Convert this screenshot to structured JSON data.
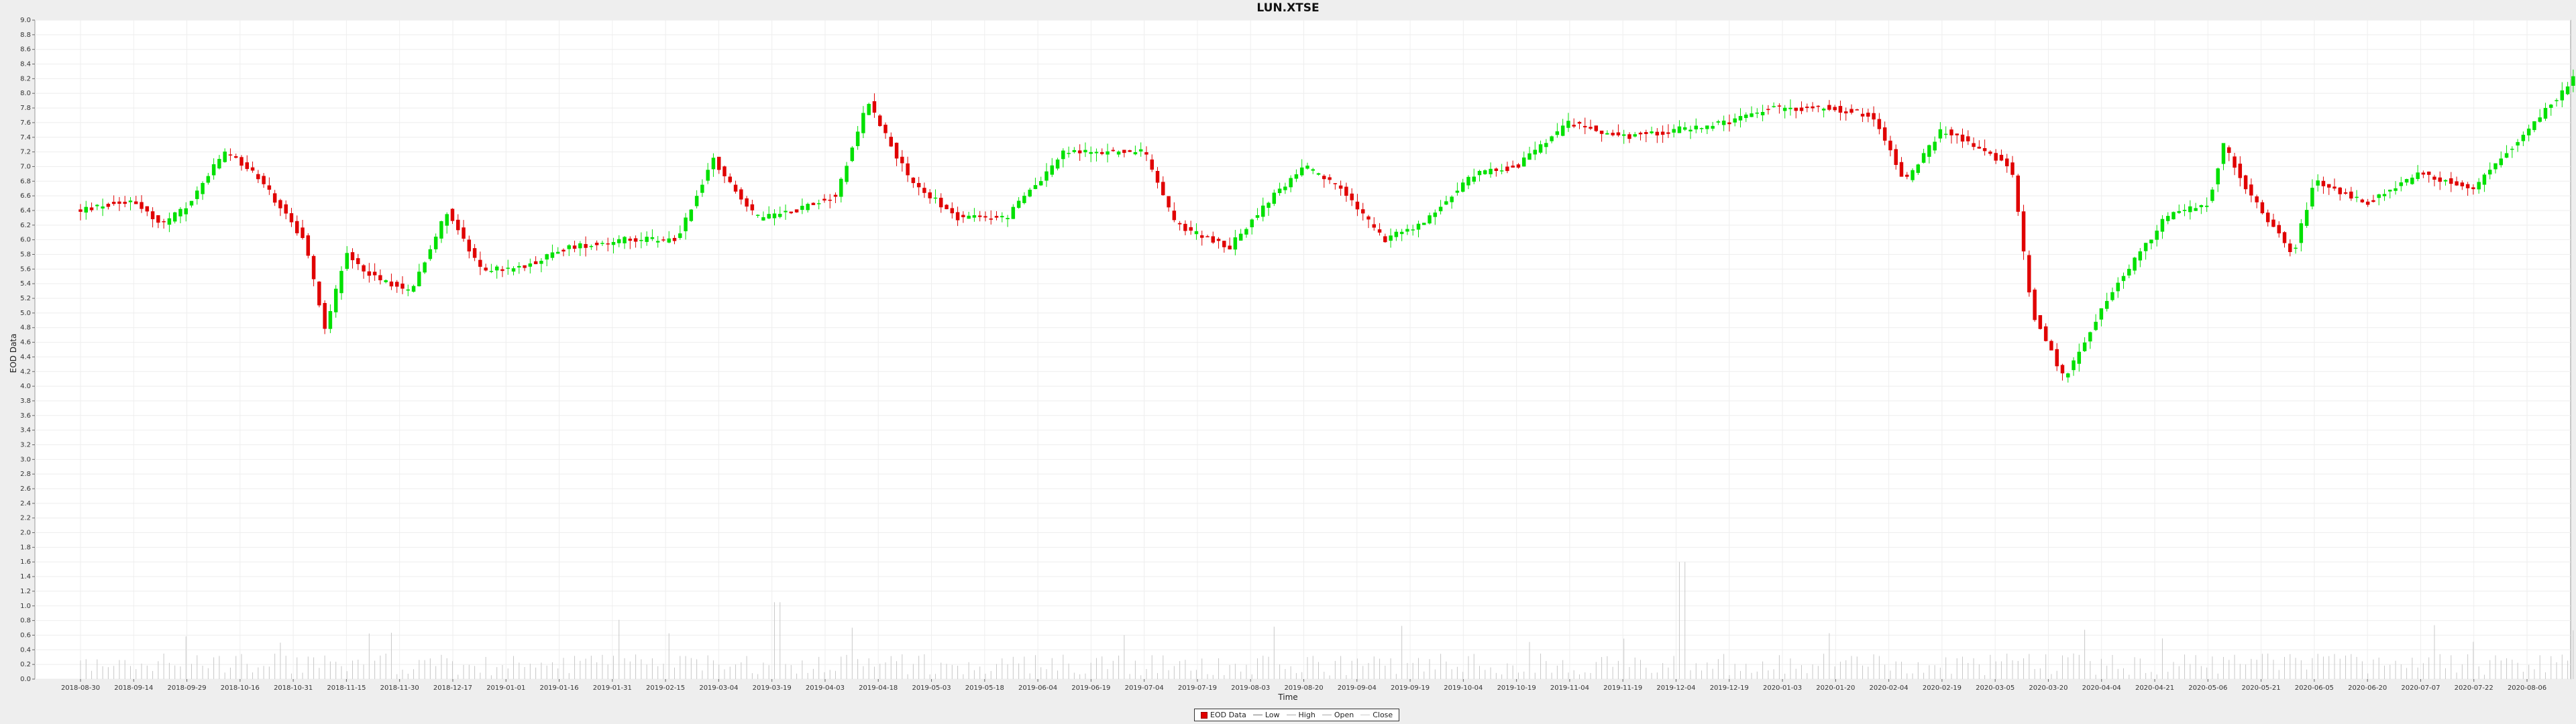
{
  "chart_data": {
    "type": "candlestick",
    "title": "LUN.XTSE",
    "xlabel": "Time",
    "ylabel": "EOD Data",
    "ylim": [
      0.0,
      9.0
    ],
    "y_ticks": [
      0.0,
      0.2,
      0.4,
      0.6,
      0.8,
      1.0,
      1.2,
      1.4,
      1.6,
      1.8,
      2.0,
      2.2,
      2.4,
      2.6,
      2.8,
      3.0,
      3.2,
      3.4,
      3.6,
      3.8,
      4.0,
      4.2,
      4.4,
      4.6,
      4.8,
      5.0,
      5.2,
      5.4,
      5.6,
      5.8,
      6.0,
      6.2,
      6.4,
      6.6,
      6.8,
      7.0,
      7.2,
      7.4,
      7.6,
      7.8,
      8.0,
      8.2,
      8.4,
      8.6,
      8.8,
      9.0
    ],
    "x_ticks": [
      "2018-08-30",
      "2018-09-14",
      "2018-09-29",
      "2018-10-16",
      "2018-10-31",
      "2018-11-15",
      "2018-11-30",
      "2018-12-17",
      "2019-01-01",
      "2019-01-16",
      "2019-01-31",
      "2019-02-15",
      "2019-03-04",
      "2019-03-19",
      "2019-04-03",
      "2019-04-18",
      "2019-05-03",
      "2019-05-18",
      "2019-06-04",
      "2019-06-19",
      "2019-07-04",
      "2019-07-19",
      "2019-08-03",
      "2019-08-20",
      "2019-09-04",
      "2019-09-19",
      "2019-10-04",
      "2019-10-19",
      "2019-11-04",
      "2019-11-19",
      "2019-12-04",
      "2019-12-19",
      "2020-01-03",
      "2020-01-20",
      "2020-02-04",
      "2020-02-19",
      "2020-03-05",
      "2020-03-20",
      "2020-04-04",
      "2020-04-21",
      "2020-05-06",
      "2020-05-21",
      "2020-06-05",
      "2020-06-20",
      "2020-07-07",
      "2020-07-22",
      "2020-08-06"
    ],
    "price_path": [
      [
        0,
        6.4
      ],
      [
        1.0,
        6.55
      ],
      [
        1.5,
        6.2
      ],
      [
        2.0,
        6.45
      ],
      [
        2.7,
        7.2
      ],
      [
        3.3,
        6.9
      ],
      [
        4.2,
        6.0
      ],
      [
        4.6,
        4.8
      ],
      [
        5.0,
        5.8
      ],
      [
        5.5,
        5.5
      ],
      [
        6.2,
        5.3
      ],
      [
        6.9,
        6.4
      ],
      [
        7.5,
        5.6
      ],
      [
        8.2,
        5.6
      ],
      [
        9.2,
        5.9
      ],
      [
        10.2,
        6.0
      ],
      [
        11.2,
        6.0
      ],
      [
        11.9,
        7.1
      ],
      [
        12.7,
        6.3
      ],
      [
        13.4,
        6.4
      ],
      [
        14.2,
        6.6
      ],
      [
        14.8,
        7.9
      ],
      [
        15.6,
        6.8
      ],
      [
        16.5,
        6.3
      ],
      [
        17.4,
        6.3
      ],
      [
        18.5,
        7.2
      ],
      [
        19.4,
        7.2
      ],
      [
        20.0,
        7.2
      ],
      [
        20.6,
        6.2
      ],
      [
        21.6,
        5.9
      ],
      [
        22.3,
        6.5
      ],
      [
        23.0,
        7.0
      ],
      [
        23.7,
        6.7
      ],
      [
        24.5,
        6.0
      ],
      [
        25.2,
        6.2
      ],
      [
        26.2,
        6.9
      ],
      [
        27.0,
        7.0
      ],
      [
        28.0,
        7.6
      ],
      [
        29.0,
        7.4
      ],
      [
        30.0,
        7.5
      ],
      [
        31.0,
        7.6
      ],
      [
        31.8,
        7.8
      ],
      [
        32.9,
        7.8
      ],
      [
        33.7,
        7.7
      ],
      [
        34.3,
        6.8
      ],
      [
        35.0,
        7.5
      ],
      [
        35.6,
        7.3
      ],
      [
        36.3,
        7.0
      ],
      [
        36.7,
        5.0
      ],
      [
        37.3,
        4.1
      ],
      [
        38.2,
        5.3
      ],
      [
        39.2,
        6.3
      ],
      [
        40.0,
        6.5
      ],
      [
        40.3,
        7.3
      ],
      [
        40.8,
        6.6
      ],
      [
        41.6,
        5.8
      ],
      [
        42.0,
        6.8
      ],
      [
        43.0,
        6.5
      ],
      [
        44.0,
        6.9
      ],
      [
        45.0,
        6.7
      ],
      [
        46.0,
        7.5
      ],
      [
        47.0,
        8.3
      ],
      [
        47.8,
        8.5
      ],
      [
        48.5,
        7.6
      ],
      [
        49.2,
        8.0
      ],
      [
        49.7,
        7.6
      ],
      [
        50.0,
        7.7
      ]
    ],
    "volume_max": 1.6,
    "legend": [
      "EOD Data",
      "Low",
      "High",
      "Open",
      "Close"
    ],
    "legend_position": "bottom-center",
    "colors": {
      "up": "#00e000",
      "down": "#e00000",
      "volume": "#c8c8c8",
      "grid": "#eeeeee",
      "plot_bg": "#ffffff"
    },
    "grid": true
  }
}
